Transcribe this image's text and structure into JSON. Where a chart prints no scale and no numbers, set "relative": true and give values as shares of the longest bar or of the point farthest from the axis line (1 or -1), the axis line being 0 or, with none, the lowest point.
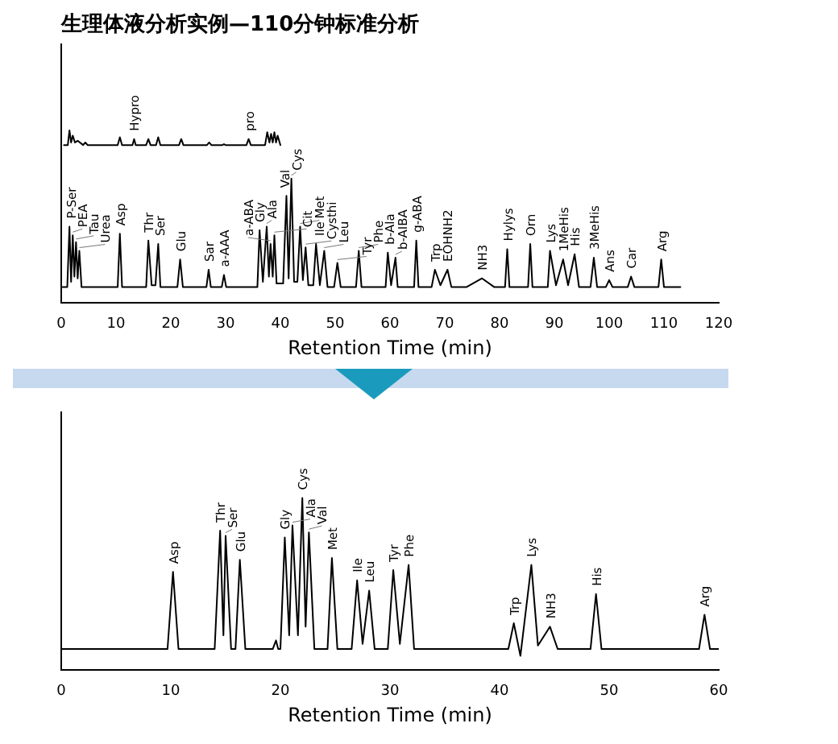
{
  "chart_data": [
    {
      "type": "line",
      "title": "生理体液分析实例—110分钟标准分析",
      "xlabel": "Retention Time (min)",
      "relative": true,
      "xlim": [
        0,
        120
      ],
      "xticks": [
        0,
        10,
        20,
        30,
        40,
        50,
        60,
        70,
        80,
        90,
        100,
        110,
        120
      ],
      "series": [
        {
          "color": "#000000",
          "x": [
            0,
            1.1,
            1.5,
            1.8,
            2.1,
            2.4,
            2.7,
            3.0,
            3.3,
            3.7,
            10.3,
            10.7,
            11.1,
            15.5,
            15.9,
            16.5,
            17.2,
            17.7,
            18.1,
            21.2,
            21.7,
            22.2,
            26.5,
            26.9,
            27.3,
            29.3,
            29.7,
            30.1,
            35.8,
            36.2,
            36.8,
            37.5,
            37.9,
            38.2,
            38.6,
            38.9,
            39.3,
            40.5,
            41.1,
            41.5,
            42.0,
            42.5,
            43.1,
            43.6,
            44.1,
            44.6,
            45.1,
            46.0,
            46.5,
            47.2,
            48.0,
            48.6,
            49.8,
            50.4,
            51.0,
            53.8,
            54.3,
            54.8,
            59.2,
            59.6,
            60.2,
            61.0,
            61.4,
            64.4,
            64.8,
            65.2,
            67.6,
            68.2,
            69.2,
            70.5,
            71.2,
            74,
            76.8,
            79,
            81.0,
            81.4,
            81.8,
            85.2,
            85.6,
            86.0,
            88.8,
            89.2,
            90.3,
            91.6,
            92.5,
            93.7,
            94.5,
            96.6,
            97.2,
            97.8,
            99.4,
            100,
            100.6,
            103.4,
            104,
            104.6,
            109,
            109.5,
            110,
            113
          ],
          "values": [
            0.09,
            0.09,
            0.44,
            0.12,
            0.39,
            0.15,
            0.35,
            0.14,
            0.3,
            0.09,
            0.09,
            0.4,
            0.09,
            0.09,
            0.36,
            0.1,
            0.1,
            0.34,
            0.09,
            0.09,
            0.25,
            0.09,
            0.09,
            0.19,
            0.09,
            0.09,
            0.16,
            0.09,
            0.09,
            0.42,
            0.12,
            0.44,
            0.15,
            0.34,
            0.15,
            0.39,
            0.11,
            0.11,
            0.62,
            0.14,
            0.72,
            0.12,
            0.12,
            0.44,
            0.13,
            0.32,
            0.1,
            0.1,
            0.34,
            0.1,
            0.3,
            0.09,
            0.09,
            0.23,
            0.09,
            0.09,
            0.3,
            0.09,
            0.09,
            0.29,
            0.1,
            0.26,
            0.09,
            0.09,
            0.36,
            0.09,
            0.09,
            0.19,
            0.1,
            0.19,
            0.09,
            0.09,
            0.14,
            0.09,
            0.09,
            0.31,
            0.09,
            0.09,
            0.34,
            0.09,
            0.09,
            0.3,
            0.1,
            0.25,
            0.1,
            0.28,
            0.09,
            0.09,
            0.26,
            0.09,
            0.09,
            0.13,
            0.09,
            0.09,
            0.15,
            0.09,
            0.09,
            0.25,
            0.09,
            0.09
          ]
        },
        {
          "color": "#000000",
          "x": [
            0.5,
            1.2,
            1.5,
            1.8,
            2.1,
            2.5,
            3,
            4,
            4.4,
            4.8,
            10.3,
            10.7,
            11.1,
            13,
            13.3,
            13.6,
            15.5,
            15.9,
            16.3,
            17.3,
            17.7,
            18.1,
            21.5,
            21.9,
            22.3,
            26.6,
            27,
            27.4,
            29.4,
            29.7,
            30,
            33.8,
            34.2,
            34.6,
            37.2,
            37.6,
            38,
            38.3,
            38.6,
            38.9,
            39.2,
            39.5,
            40
          ],
          "values": [
            0.915,
            0.915,
            1.0,
            0.93,
            0.97,
            0.93,
            0.94,
            0.915,
            0.93,
            0.915,
            0.915,
            0.96,
            0.915,
            0.915,
            0.95,
            0.915,
            0.915,
            0.95,
            0.915,
            0.915,
            0.96,
            0.915,
            0.915,
            0.95,
            0.915,
            0.915,
            0.93,
            0.915,
            0.915,
            0.92,
            0.915,
            0.915,
            0.95,
            0.915,
            0.915,
            0.99,
            0.93,
            0.98,
            0.93,
            0.99,
            0.93,
            0.97,
            0.915
          ]
        }
      ],
      "annotations": [
        {
          "text": "P-Ser",
          "x": 1.5,
          "y": 0.44
        },
        {
          "text": "PEA",
          "x": 2.1,
          "y": 0.39
        },
        {
          "text": "Tau",
          "x": 2.7,
          "y": 0.35
        },
        {
          "text": "Urea",
          "x": 3.3,
          "y": 0.3
        },
        {
          "text": "Asp",
          "x": 10.7,
          "y": 0.4
        },
        {
          "text": "Thr",
          "x": 15.9,
          "y": 0.36
        },
        {
          "text": "Ser",
          "x": 17.7,
          "y": 0.34
        },
        {
          "text": "Glu",
          "x": 21.7,
          "y": 0.25
        },
        {
          "text": "Sar",
          "x": 26.9,
          "y": 0.19
        },
        {
          "text": "a-AAA",
          "x": 29.7,
          "y": 0.16
        },
        {
          "text": "Gly",
          "x": 36.2,
          "y": 0.42
        },
        {
          "text": "Ala",
          "x": 37.5,
          "y": 0.44
        },
        {
          "text": "a-ABA",
          "x": 38.2,
          "y": 0.34
        },
        {
          "text": "Cit",
          "x": 38.9,
          "y": 0.39
        },
        {
          "text": "Val",
          "x": 41.1,
          "y": 0.62
        },
        {
          "text": "Cys",
          "x": 42.0,
          "y": 0.72
        },
        {
          "text": "Met",
          "x": 43.6,
          "y": 0.44
        },
        {
          "text": "Cysthi",
          "x": 44.6,
          "y": 0.32
        },
        {
          "text": "Ile",
          "x": 46.5,
          "y": 0.34
        },
        {
          "text": "Leu",
          "x": 48.0,
          "y": 0.3
        },
        {
          "text": "Tyr",
          "x": 50.4,
          "y": 0.23
        },
        {
          "text": "Phe",
          "x": 54.3,
          "y": 0.3
        },
        {
          "text": "b-Ala",
          "x": 59.6,
          "y": 0.29
        },
        {
          "text": "b-AIBA",
          "x": 61.0,
          "y": 0.26
        },
        {
          "text": "g-ABA",
          "x": 64.8,
          "y": 0.36
        },
        {
          "text": "Trp",
          "x": 68.2,
          "y": 0.19
        },
        {
          "text": "EOHNH2",
          "x": 70.5,
          "y": 0.19
        },
        {
          "text": "NH3",
          "x": 76.8,
          "y": 0.14
        },
        {
          "text": "Hylys",
          "x": 81.4,
          "y": 0.31
        },
        {
          "text": "Orn",
          "x": 85.6,
          "y": 0.34
        },
        {
          "text": "Lys",
          "x": 89.2,
          "y": 0.3
        },
        {
          "text": "1MeHis",
          "x": 91.6,
          "y": 0.25
        },
        {
          "text": "His",
          "x": 93.7,
          "y": 0.28
        },
        {
          "text": "3MeHis",
          "x": 97.2,
          "y": 0.26
        },
        {
          "text": "Ans",
          "x": 100,
          "y": 0.13
        },
        {
          "text": "Car",
          "x": 104,
          "y": 0.15
        },
        {
          "text": "Arg",
          "x": 109.5,
          "y": 0.25
        },
        {
          "text": "Hypro",
          "x": 13.3,
          "y": 0.95
        },
        {
          "text": "pro",
          "x": 34.2,
          "y": 0.95
        }
      ]
    },
    {
      "type": "line",
      "xlabel": "Retention Time (min)",
      "relative": true,
      "xlim": [
        0,
        60
      ],
      "xticks": [
        0,
        10,
        20,
        30,
        40,
        50,
        60
      ],
      "series": [
        {
          "color": "#000000",
          "x": [
            0,
            9.7,
            10.2,
            10.7,
            14.0,
            14.5,
            14.8,
            15.0,
            15.5,
            15.9,
            16.3,
            16.8,
            19.3,
            19.6,
            19.8,
            20.0,
            20.4,
            20.8,
            21.1,
            21.6,
            22.0,
            22.3,
            22.6,
            23.1,
            24.3,
            24.7,
            25.2,
            26.5,
            27.0,
            27.5,
            28.1,
            28.6,
            29.8,
            30.3,
            30.9,
            31.7,
            32.2,
            40.8,
            41.3,
            41.9,
            42.9,
            43.5,
            44.6,
            45.3,
            48.3,
            48.8,
            49.3,
            55,
            58.2,
            58.7,
            59.2,
            60
          ],
          "values": [
            0.12,
            0.12,
            0.57,
            0.12,
            0.12,
            0.81,
            0.2,
            0.78,
            0.12,
            0.12,
            0.64,
            0.12,
            0.12,
            0.17,
            0.12,
            0.12,
            0.77,
            0.2,
            0.84,
            0.2,
            1.0,
            0.25,
            0.8,
            0.12,
            0.12,
            0.65,
            0.12,
            0.12,
            0.52,
            0.15,
            0.46,
            0.12,
            0.12,
            0.58,
            0.15,
            0.61,
            0.12,
            0.12,
            0.27,
            0.08,
            0.61,
            0.14,
            0.25,
            0.12,
            0.12,
            0.44,
            0.12,
            0.12,
            0.12,
            0.32,
            0.12,
            0.12
          ]
        }
      ],
      "annotations": [
        {
          "text": "Asp",
          "x": 10.2,
          "y": 0.57
        },
        {
          "text": "Thr",
          "x": 14.5,
          "y": 0.81
        },
        {
          "text": "Ser",
          "x": 15.0,
          "y": 0.78
        },
        {
          "text": "Glu",
          "x": 16.3,
          "y": 0.64
        },
        {
          "text": "Gly",
          "x": 20.4,
          "y": 0.77
        },
        {
          "text": "Ala",
          "x": 21.1,
          "y": 0.84
        },
        {
          "text": "Cys",
          "x": 22.0,
          "y": 1.0
        },
        {
          "text": "Val",
          "x": 22.6,
          "y": 0.8
        },
        {
          "text": "Met",
          "x": 24.7,
          "y": 0.65
        },
        {
          "text": "Ile",
          "x": 27.0,
          "y": 0.52
        },
        {
          "text": "Leu",
          "x": 28.1,
          "y": 0.46
        },
        {
          "text": "Tyr",
          "x": 30.3,
          "y": 0.58
        },
        {
          "text": "Phe",
          "x": 31.7,
          "y": 0.61
        },
        {
          "text": "Trp",
          "x": 41.3,
          "y": 0.27
        },
        {
          "text": "Lys",
          "x": 42.9,
          "y": 0.61
        },
        {
          "text": "NH3",
          "x": 44.6,
          "y": 0.25
        },
        {
          "text": "His",
          "x": 48.8,
          "y": 0.44
        },
        {
          "text": "Arg",
          "x": 58.7,
          "y": 0.32
        }
      ]
    }
  ]
}
